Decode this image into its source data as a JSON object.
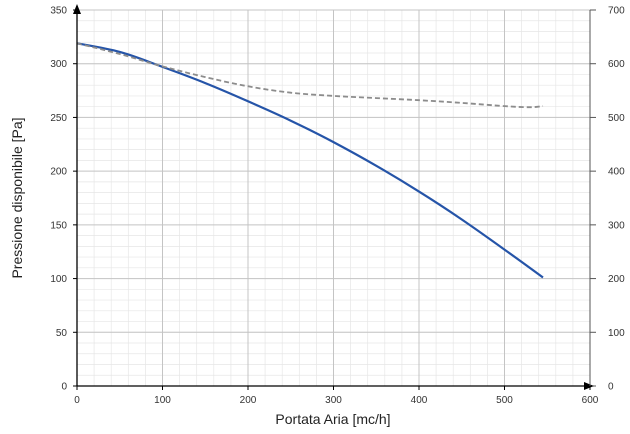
{
  "chart_data": {
    "type": "line",
    "xlabel": "Portata Aria [mc/h]",
    "ylabel": "Pressione disponibile [Pa]",
    "y2label": "",
    "xlim": [
      0,
      600
    ],
    "ylim": [
      0,
      350
    ],
    "y2lim": [
      0,
      700
    ],
    "x_ticks": [
      0,
      100,
      200,
      300,
      400,
      500,
      600
    ],
    "y_ticks": [
      0,
      50,
      100,
      150,
      200,
      250,
      300,
      350
    ],
    "y2_ticks": [
      0,
      100,
      200,
      300,
      400,
      500,
      600,
      700
    ],
    "grid": true,
    "legend": "none",
    "series": [
      {
        "axis": "left",
        "style": "solid",
        "color": "#2554a8",
        "points": [
          [
            0,
            319
          ],
          [
            50,
            311
          ],
          [
            100,
            297
          ],
          [
            150,
            282
          ],
          [
            200,
            265
          ],
          [
            250,
            247
          ],
          [
            300,
            227
          ],
          [
            350,
            205
          ],
          [
            400,
            181
          ],
          [
            450,
            155
          ],
          [
            500,
            127
          ],
          [
            545,
            101
          ]
        ]
      },
      {
        "axis": "right",
        "style": "dashed",
        "color": "#8c8c8c",
        "points": [
          [
            0,
            638
          ],
          [
            50,
            618
          ],
          [
            100,
            595
          ],
          [
            150,
            575
          ],
          [
            200,
            558
          ],
          [
            250,
            546
          ],
          [
            300,
            540
          ],
          [
            350,
            536
          ],
          [
            400,
            532
          ],
          [
            450,
            527
          ],
          [
            500,
            521
          ],
          [
            530,
            519
          ],
          [
            545,
            521
          ]
        ]
      }
    ]
  },
  "colors": {
    "grid_major": "#c4c4c4",
    "grid_minor": "#e6e6e6",
    "axis": "#000000"
  }
}
